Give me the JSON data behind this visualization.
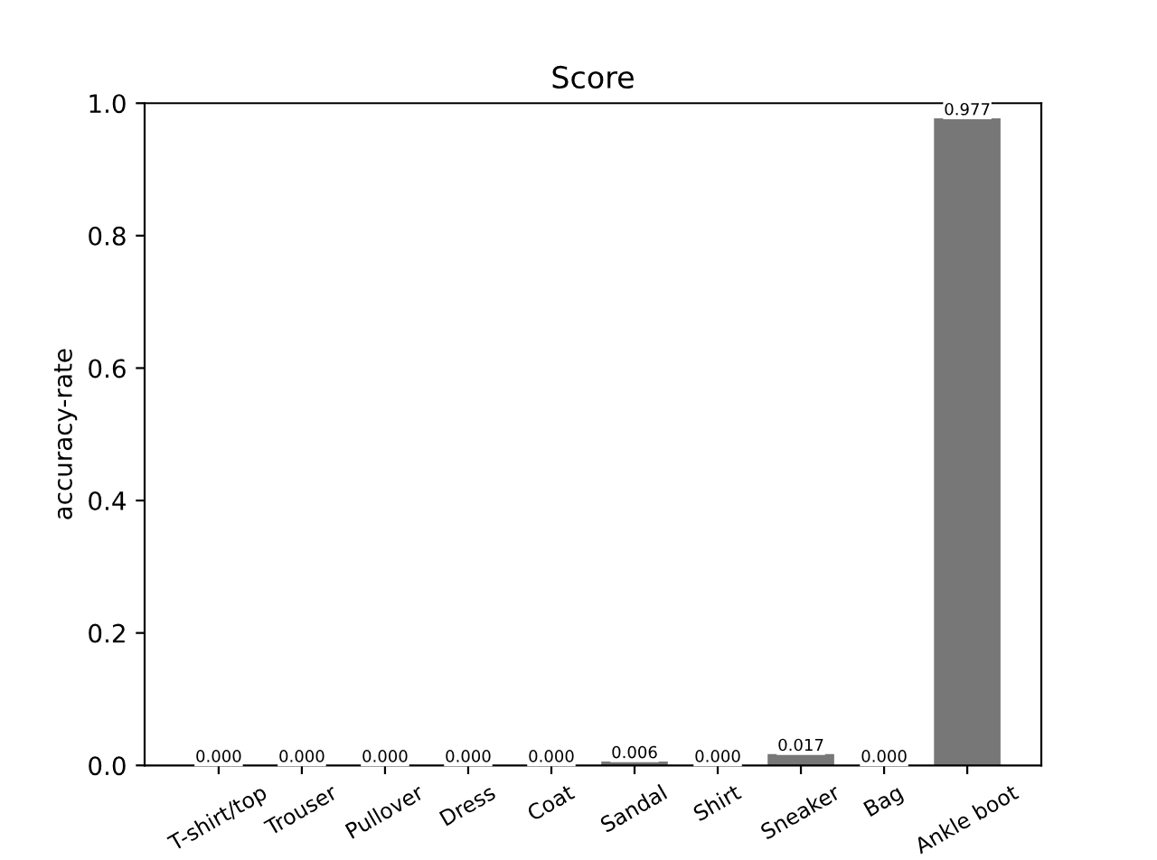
{
  "chart_data": {
    "type": "bar",
    "title": "Score",
    "ylabel": "accuracy-rate",
    "categories": [
      "T-shirt/top",
      "Trouser",
      "Pullover",
      "Dress",
      "Coat",
      "Sandal",
      "Shirt",
      "Sneaker",
      "Bag",
      "Ankle boot"
    ],
    "values": [
      0,
      0,
      0,
      0,
      0,
      0.006,
      0,
      0.017,
      0,
      0.977
    ],
    "value_labels": [
      "0.000",
      "0.000",
      "0.000",
      "0.000",
      "0.000",
      "0.006",
      "0.000",
      "0.017",
      "0.000",
      "0.977"
    ],
    "color": "#777777",
    "ylim": [
      0,
      1
    ],
    "yticks": [
      {
        "value": 0,
        "label": "0.0"
      },
      {
        "value": 0.2,
        "label": "0.2"
      },
      {
        "value": 0.4,
        "label": "0.4"
      },
      {
        "value": 0.6,
        "label": "0.6"
      },
      {
        "value": 0.8,
        "label": "0.8"
      },
      {
        "value": 1,
        "label": "1.0"
      }
    ],
    "grid": false
  }
}
